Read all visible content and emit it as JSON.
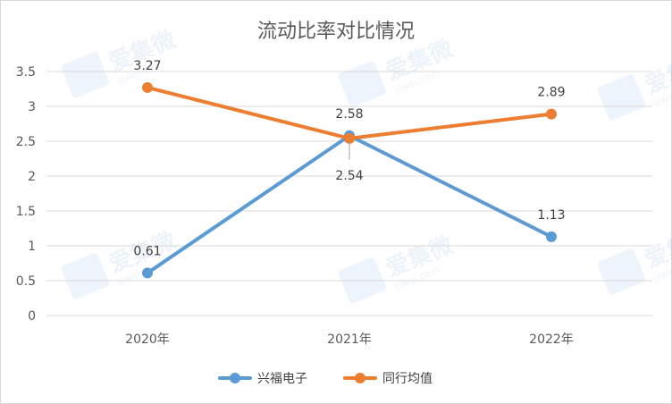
{
  "chart_data": {
    "type": "line",
    "title": "流动比率对比情况",
    "xlabel": "",
    "ylabel": "",
    "categories": [
      "2020年",
      "2021年",
      "2022年"
    ],
    "y_ticks": [
      "0",
      "0.5",
      "1",
      "1.5",
      "2",
      "2.5",
      "3",
      "3.5"
    ],
    "ylim": [
      0,
      3.5
    ],
    "grid": true,
    "legend_position": "bottom",
    "series": [
      {
        "name": "兴福电子",
        "values": [
          0.61,
          2.58,
          1.13
        ],
        "labels": [
          "0.61",
          "2.58",
          "1.13"
        ],
        "color": "#5b9bd5"
      },
      {
        "name": "同行均值",
        "values": [
          3.27,
          2.54,
          2.89
        ],
        "labels": [
          "3.27",
          "2.54",
          "2.89"
        ],
        "color": "#ed7d31"
      }
    ]
  },
  "watermark": {
    "text": "爱集微",
    "subtext": "ijiwei.com"
  }
}
